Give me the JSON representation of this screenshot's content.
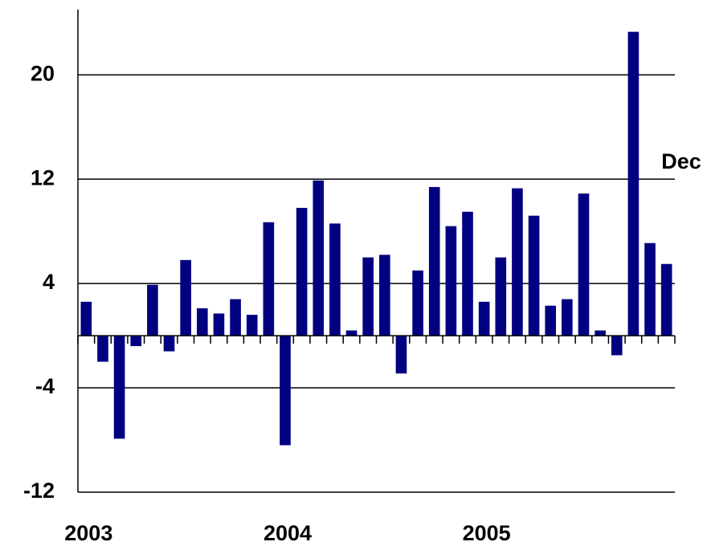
{
  "chart_data": {
    "type": "bar",
    "annotation": "Dec",
    "categories": [
      "2003",
      null,
      null,
      null,
      null,
      null,
      null,
      null,
      null,
      null,
      null,
      null,
      "2004",
      null,
      null,
      null,
      null,
      null,
      null,
      null,
      null,
      null,
      null,
      null,
      "2005",
      null,
      null,
      null,
      null,
      null,
      null,
      null,
      null,
      null,
      null,
      null
    ],
    "values": [
      2.6,
      -2.0,
      -7.9,
      -0.8,
      3.9,
      -1.2,
      5.8,
      2.1,
      1.7,
      2.8,
      1.6,
      8.7,
      -8.4,
      9.8,
      11.9,
      8.6,
      0.4,
      6.0,
      6.2,
      -2.9,
      5.0,
      11.4,
      8.4,
      9.5,
      2.6,
      6.0,
      11.3,
      9.2,
      2.3,
      2.8,
      10.9,
      0.4,
      -1.5,
      23.3,
      7.1,
      5.5
    ],
    "color": "#000080",
    "ylim": [
      -12,
      25
    ],
    "yticks": [
      -12,
      -4,
      4,
      12,
      20
    ],
    "grid": true
  }
}
